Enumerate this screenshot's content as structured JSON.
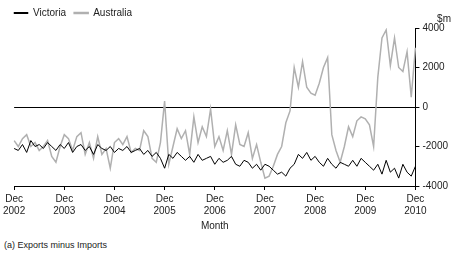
{
  "chart_data": {
    "type": "line",
    "x_label": "Month",
    "y_label": "$m",
    "footnote": "(a) Exports minus Imports",
    "legend": "top-left",
    "categories": [
      "Dec 2002",
      null,
      null,
      null,
      null,
      null,
      null,
      null,
      null,
      null,
      null,
      null,
      "Dec 2003",
      null,
      null,
      null,
      null,
      null,
      null,
      null,
      null,
      null,
      null,
      null,
      "Dec 2004",
      null,
      null,
      null,
      null,
      null,
      null,
      null,
      null,
      null,
      null,
      null,
      "Dec 2005",
      null,
      null,
      null,
      null,
      null,
      null,
      null,
      null,
      null,
      null,
      null,
      "Dec 2006",
      null,
      null,
      null,
      null,
      null,
      null,
      null,
      null,
      null,
      null,
      null,
      "Dec 2007",
      null,
      null,
      null,
      null,
      null,
      null,
      null,
      null,
      null,
      null,
      null,
      "Dec 2008",
      null,
      null,
      null,
      null,
      null,
      null,
      null,
      null,
      null,
      null,
      null,
      "Dec 2009",
      null,
      null,
      null,
      null,
      null,
      null,
      null,
      null,
      null,
      null,
      null,
      "Dec 2010"
    ],
    "series": [
      {
        "name": "Victoria",
        "color": "#000000",
        "values": [
          -2100,
          -2200,
          -1900,
          -2300,
          -1700,
          -2000,
          -1900,
          -2100,
          -1800,
          -2000,
          -2200,
          -1900,
          -2100,
          -1800,
          -2300,
          -2000,
          -1900,
          -2200,
          -2000,
          -2400,
          -1900,
          -2100,
          -2200,
          -2000,
          -2300,
          -2100,
          -2200,
          -2000,
          -2300,
          -2200,
          -2100,
          -2400,
          -2200,
          -2500,
          -2300,
          -2600,
          -3100,
          -2400,
          -2600,
          -2300,
          -2500,
          -2700,
          -2500,
          -2800,
          -2400,
          -2700,
          -2600,
          -2500,
          -2900,
          -2600,
          -2800,
          -2700,
          -2500,
          -2900,
          -3000,
          -2700,
          -2800,
          -3100,
          -2900,
          -3200,
          -2900,
          -3000,
          -3200,
          -3400,
          -3300,
          -3500,
          -3100,
          -2900,
          -2400,
          -2600,
          -2300,
          -2700,
          -2500,
          -2800,
          -3000,
          -2600,
          -2900,
          -3100,
          -2800,
          -2900,
          -3000,
          -2700,
          -3000,
          -2600,
          -2800,
          -3000,
          -3200,
          -2900,
          -3400,
          -2700,
          -3300,
          -3100,
          -3600,
          -2900,
          -3300,
          -3500,
          -3000
        ]
      },
      {
        "name": "Australia",
        "color": "#b0b0b0",
        "values": [
          -1700,
          -2000,
          -1600,
          -1400,
          -2000,
          -1800,
          -2200,
          -2000,
          -1700,
          -2500,
          -2800,
          -2000,
          -1400,
          -1600,
          -2200,
          -1500,
          -1300,
          -2400,
          -1800,
          -2600,
          -1500,
          -2400,
          -2100,
          -3100,
          -1800,
          -1600,
          -1900,
          -1500,
          -2300,
          -2100,
          -2200,
          -1200,
          -1500,
          -2600,
          -2800,
          -1800,
          300,
          -2900,
          -2000,
          -1100,
          -1600,
          -1200,
          -2400,
          -500,
          -1800,
          -1000,
          -1500,
          -100,
          -2000,
          -1500,
          -2200,
          -1200,
          -2400,
          -900,
          -1900,
          -2000,
          -1300,
          -2600,
          -1900,
          -2800,
          -3600,
          -3500,
          -3000,
          -2400,
          -2000,
          -800,
          -200,
          2000,
          1000,
          2300,
          1000,
          700,
          600,
          1200,
          2000,
          2500,
          -1400,
          -2200,
          -2800,
          -2000,
          -1000,
          -1500,
          -700,
          -500,
          -600,
          -900,
          -2000,
          1500,
          3500,
          3900,
          2100,
          3500,
          2000,
          1800,
          2800,
          500,
          3000
        ]
      }
    ],
    "ylim": [
      -4000,
      4000
    ],
    "yticks": [
      -4000,
      -2000,
      0,
      2000,
      4000
    ]
  }
}
